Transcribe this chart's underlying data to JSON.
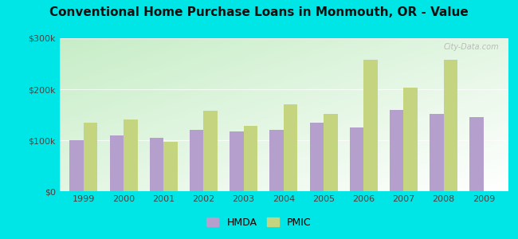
{
  "title": "Conventional Home Purchase Loans in Monmouth, OR - Value",
  "years": [
    1999,
    2000,
    2001,
    2002,
    2003,
    2004,
    2005,
    2006,
    2007,
    2008,
    2009
  ],
  "hmda_values": [
    100000,
    110000,
    105000,
    120000,
    117000,
    120000,
    135000,
    125000,
    160000,
    152000,
    145000
  ],
  "pmic_values": [
    135000,
    140000,
    97000,
    158000,
    128000,
    170000,
    152000,
    258000,
    203000,
    258000,
    0
  ],
  "hmda_color": "#b59fcc",
  "pmic_color": "#c5d47e",
  "outer_bg": "#00e5e5",
  "ylim": [
    0,
    300000
  ],
  "yticks": [
    0,
    100000,
    200000,
    300000
  ],
  "ytick_labels": [
    "$0",
    "$100k",
    "$200k",
    "$300k"
  ],
  "bar_width": 0.35,
  "legend_labels": [
    "HMDA",
    "PMIC"
  ],
  "title_fontsize": 11,
  "tick_fontsize": 8,
  "legend_fontsize": 9
}
